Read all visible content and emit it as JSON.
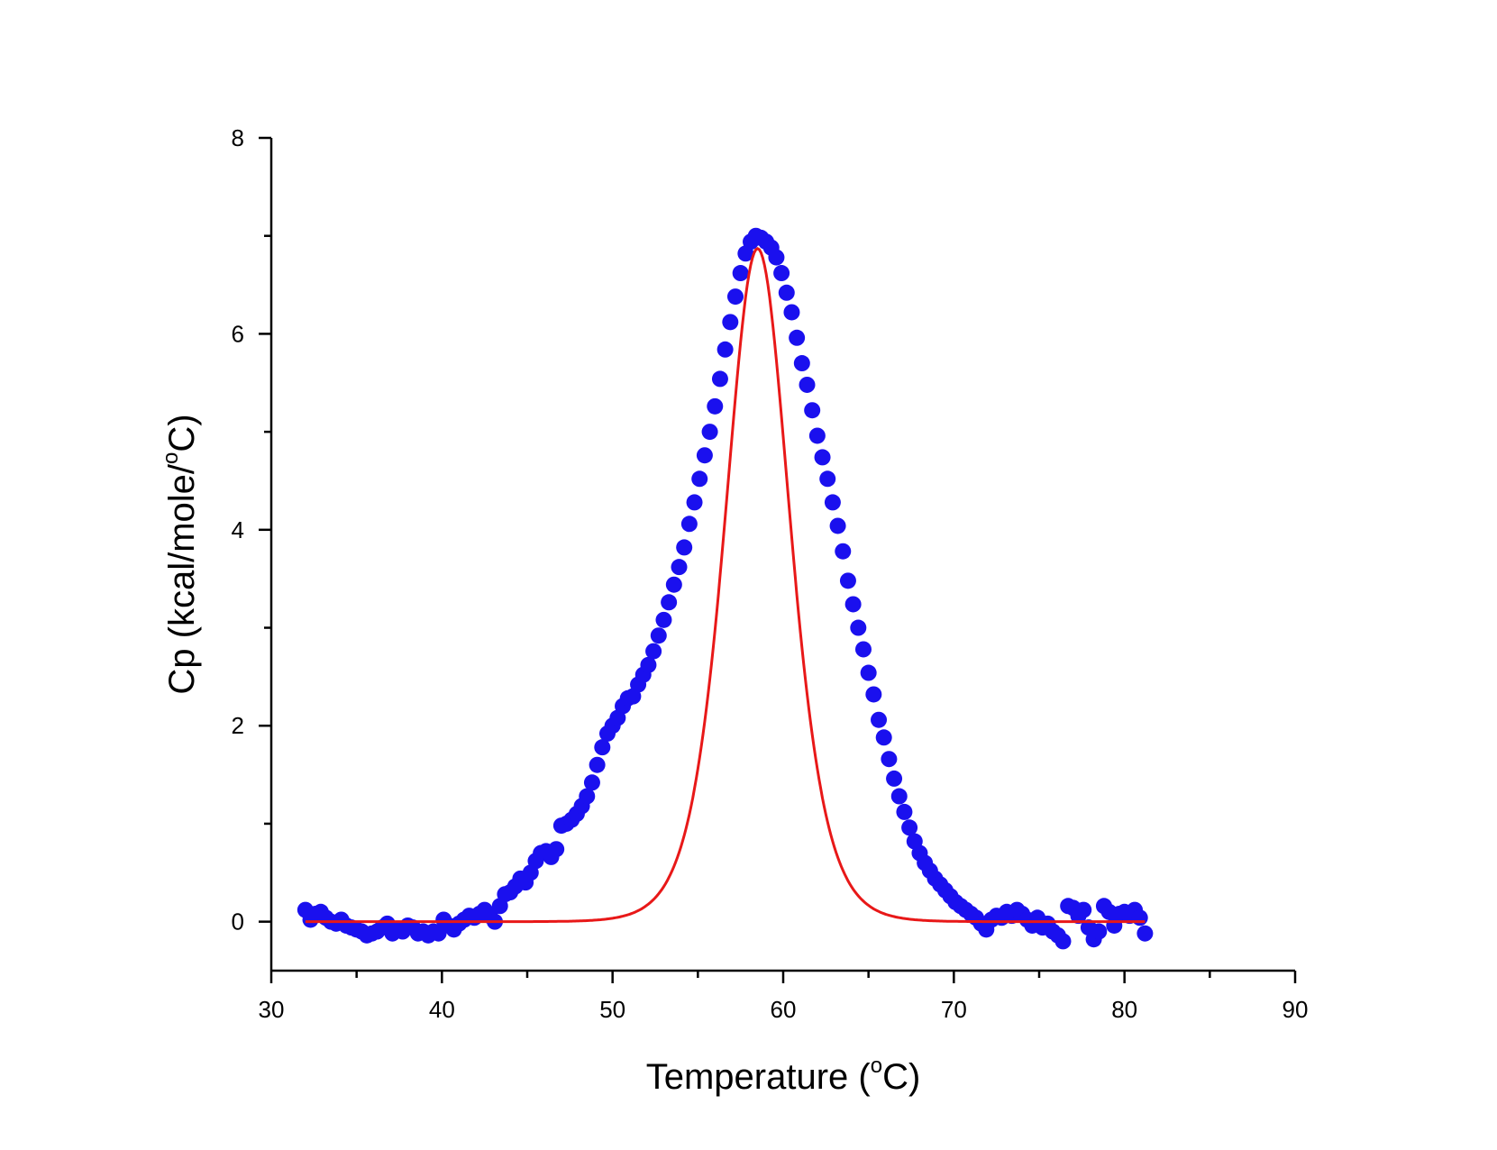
{
  "chart_data": {
    "type": "scatter",
    "xlabel": "Temperature (°C)",
    "xlabel_parts": {
      "before": "Temperature (",
      "sup": "o",
      "after": "C)"
    },
    "ylabel": "Cp (kcal/mole/°C)",
    "ylabel_parts": {
      "before": "Cp (kcal/mole/",
      "sup": "o",
      "after": "C)"
    },
    "xlim": [
      30,
      90
    ],
    "ylim": [
      -0.5,
      8
    ],
    "x_major_ticks": [
      30,
      40,
      50,
      60,
      70,
      80,
      90
    ],
    "x_tick_labels": [
      "30",
      "40",
      "50",
      "60",
      "70",
      "80",
      "90"
    ],
    "x_minor_ticks": [
      35,
      45,
      55,
      65,
      75,
      85
    ],
    "y_major_ticks": [
      0,
      2,
      4,
      6,
      8
    ],
    "y_tick_labels": [
      "0",
      "2",
      "4",
      "6",
      "8"
    ],
    "y_minor_ticks": [
      1,
      3,
      5,
      7
    ],
    "grid": false,
    "legend": "none",
    "series": [
      {
        "kind": "scatter",
        "color": "#1a10ee",
        "points": [
          [
            32.0,
            0.12
          ],
          [
            32.3,
            0.02
          ],
          [
            32.6,
            0.08
          ],
          [
            32.9,
            0.1
          ],
          [
            33.2,
            0.04
          ],
          [
            33.5,
            0.0
          ],
          [
            33.8,
            -0.02
          ],
          [
            34.1,
            0.02
          ],
          [
            34.4,
            -0.04
          ],
          [
            34.7,
            -0.06
          ],
          [
            35.0,
            -0.08
          ],
          [
            35.3,
            -0.1
          ],
          [
            35.6,
            -0.14
          ],
          [
            35.9,
            -0.12
          ],
          [
            36.2,
            -0.1
          ],
          [
            36.5,
            -0.06
          ],
          [
            36.8,
            -0.02
          ],
          [
            37.1,
            -0.12
          ],
          [
            37.4,
            -0.08
          ],
          [
            37.7,
            -0.1
          ],
          [
            38.0,
            -0.04
          ],
          [
            38.3,
            -0.06
          ],
          [
            38.6,
            -0.12
          ],
          [
            38.9,
            -0.1
          ],
          [
            39.2,
            -0.14
          ],
          [
            39.5,
            -0.1
          ],
          [
            39.8,
            -0.12
          ],
          [
            40.1,
            0.02
          ],
          [
            40.4,
            -0.04
          ],
          [
            40.7,
            -0.08
          ],
          [
            41.0,
            -0.02
          ],
          [
            41.3,
            0.02
          ],
          [
            41.6,
            0.06
          ],
          [
            41.9,
            0.04
          ],
          [
            42.2,
            0.08
          ],
          [
            42.5,
            0.12
          ],
          [
            42.8,
            0.06
          ],
          [
            43.1,
            0.0
          ],
          [
            43.4,
            0.16
          ],
          [
            43.7,
            0.28
          ],
          [
            44.0,
            0.3
          ],
          [
            44.3,
            0.36
          ],
          [
            44.6,
            0.44
          ],
          [
            44.9,
            0.4
          ],
          [
            45.2,
            0.5
          ],
          [
            45.5,
            0.62
          ],
          [
            45.8,
            0.7
          ],
          [
            46.1,
            0.72
          ],
          [
            46.4,
            0.66
          ],
          [
            46.7,
            0.74
          ],
          [
            47.0,
            0.98
          ],
          [
            47.3,
            1.0
          ],
          [
            47.6,
            1.04
          ],
          [
            47.9,
            1.1
          ],
          [
            48.2,
            1.18
          ],
          [
            48.5,
            1.28
          ],
          [
            48.8,
            1.42
          ],
          [
            49.1,
            1.6
          ],
          [
            49.4,
            1.78
          ],
          [
            49.7,
            1.92
          ],
          [
            50.0,
            2.0
          ],
          [
            50.3,
            2.08
          ],
          [
            50.6,
            2.2
          ],
          [
            50.9,
            2.28
          ],
          [
            51.2,
            2.3
          ],
          [
            51.5,
            2.42
          ],
          [
            51.8,
            2.52
          ],
          [
            52.1,
            2.62
          ],
          [
            52.4,
            2.76
          ],
          [
            52.7,
            2.92
          ],
          [
            53.0,
            3.08
          ],
          [
            53.3,
            3.26
          ],
          [
            53.6,
            3.44
          ],
          [
            53.9,
            3.62
          ],
          [
            54.2,
            3.82
          ],
          [
            54.5,
            4.06
          ],
          [
            54.8,
            4.28
          ],
          [
            55.1,
            4.52
          ],
          [
            55.4,
            4.76
          ],
          [
            55.7,
            5.0
          ],
          [
            56.0,
            5.26
          ],
          [
            56.3,
            5.54
          ],
          [
            56.6,
            5.84
          ],
          [
            56.9,
            6.12
          ],
          [
            57.2,
            6.38
          ],
          [
            57.5,
            6.62
          ],
          [
            57.8,
            6.82
          ],
          [
            58.1,
            6.94
          ],
          [
            58.4,
            7.0
          ],
          [
            58.7,
            6.98
          ],
          [
            59.0,
            6.94
          ],
          [
            59.3,
            6.88
          ],
          [
            59.6,
            6.78
          ],
          [
            59.9,
            6.62
          ],
          [
            60.2,
            6.42
          ],
          [
            60.5,
            6.22
          ],
          [
            60.8,
            5.96
          ],
          [
            61.1,
            5.7
          ],
          [
            61.4,
            5.48
          ],
          [
            61.7,
            5.22
          ],
          [
            62.0,
            4.96
          ],
          [
            62.3,
            4.74
          ],
          [
            62.6,
            4.52
          ],
          [
            62.9,
            4.28
          ],
          [
            63.2,
            4.04
          ],
          [
            63.5,
            3.78
          ],
          [
            63.8,
            3.48
          ],
          [
            64.1,
            3.24
          ],
          [
            64.4,
            3.0
          ],
          [
            64.7,
            2.78
          ],
          [
            65.0,
            2.54
          ],
          [
            65.3,
            2.32
          ],
          [
            65.6,
            2.06
          ],
          [
            65.9,
            1.88
          ],
          [
            66.2,
            1.66
          ],
          [
            66.5,
            1.46
          ],
          [
            66.8,
            1.28
          ],
          [
            67.1,
            1.12
          ],
          [
            67.4,
            0.96
          ],
          [
            67.7,
            0.82
          ],
          [
            68.0,
            0.7
          ],
          [
            68.3,
            0.6
          ],
          [
            68.6,
            0.52
          ],
          [
            68.9,
            0.44
          ],
          [
            69.2,
            0.38
          ],
          [
            69.5,
            0.32
          ],
          [
            69.8,
            0.26
          ],
          [
            70.1,
            0.2
          ],
          [
            70.4,
            0.16
          ],
          [
            70.7,
            0.12
          ],
          [
            71.0,
            0.08
          ],
          [
            71.3,
            0.04
          ],
          [
            71.6,
            -0.02
          ],
          [
            71.9,
            -0.08
          ],
          [
            72.2,
            0.02
          ],
          [
            72.5,
            0.06
          ],
          [
            72.8,
            0.04
          ],
          [
            73.1,
            0.1
          ],
          [
            73.4,
            0.06
          ],
          [
            73.7,
            0.12
          ],
          [
            74.0,
            0.08
          ],
          [
            74.3,
            0.02
          ],
          [
            74.6,
            -0.04
          ],
          [
            74.9,
            0.04
          ],
          [
            75.2,
            -0.06
          ],
          [
            75.5,
            -0.02
          ],
          [
            75.8,
            -0.1
          ],
          [
            76.1,
            -0.14
          ],
          [
            76.4,
            -0.2
          ],
          [
            76.7,
            0.16
          ],
          [
            77.0,
            0.14
          ],
          [
            77.3,
            0.06
          ],
          [
            77.6,
            0.12
          ],
          [
            77.9,
            -0.06
          ],
          [
            78.2,
            -0.18
          ],
          [
            78.5,
            -0.1
          ],
          [
            78.8,
            0.16
          ],
          [
            79.1,
            0.1
          ],
          [
            79.4,
            -0.04
          ],
          [
            79.7,
            0.08
          ],
          [
            80.0,
            0.1
          ],
          [
            80.3,
            0.06
          ],
          [
            80.6,
            0.12
          ],
          [
            80.9,
            0.04
          ],
          [
            81.2,
            -0.12
          ]
        ]
      },
      {
        "kind": "line",
        "color": "#e81818",
        "fit": {
          "peak_x": 58.5,
          "peak_y": 6.87,
          "x_start": 32.0,
          "x_end": 81.2
        }
      }
    ]
  }
}
